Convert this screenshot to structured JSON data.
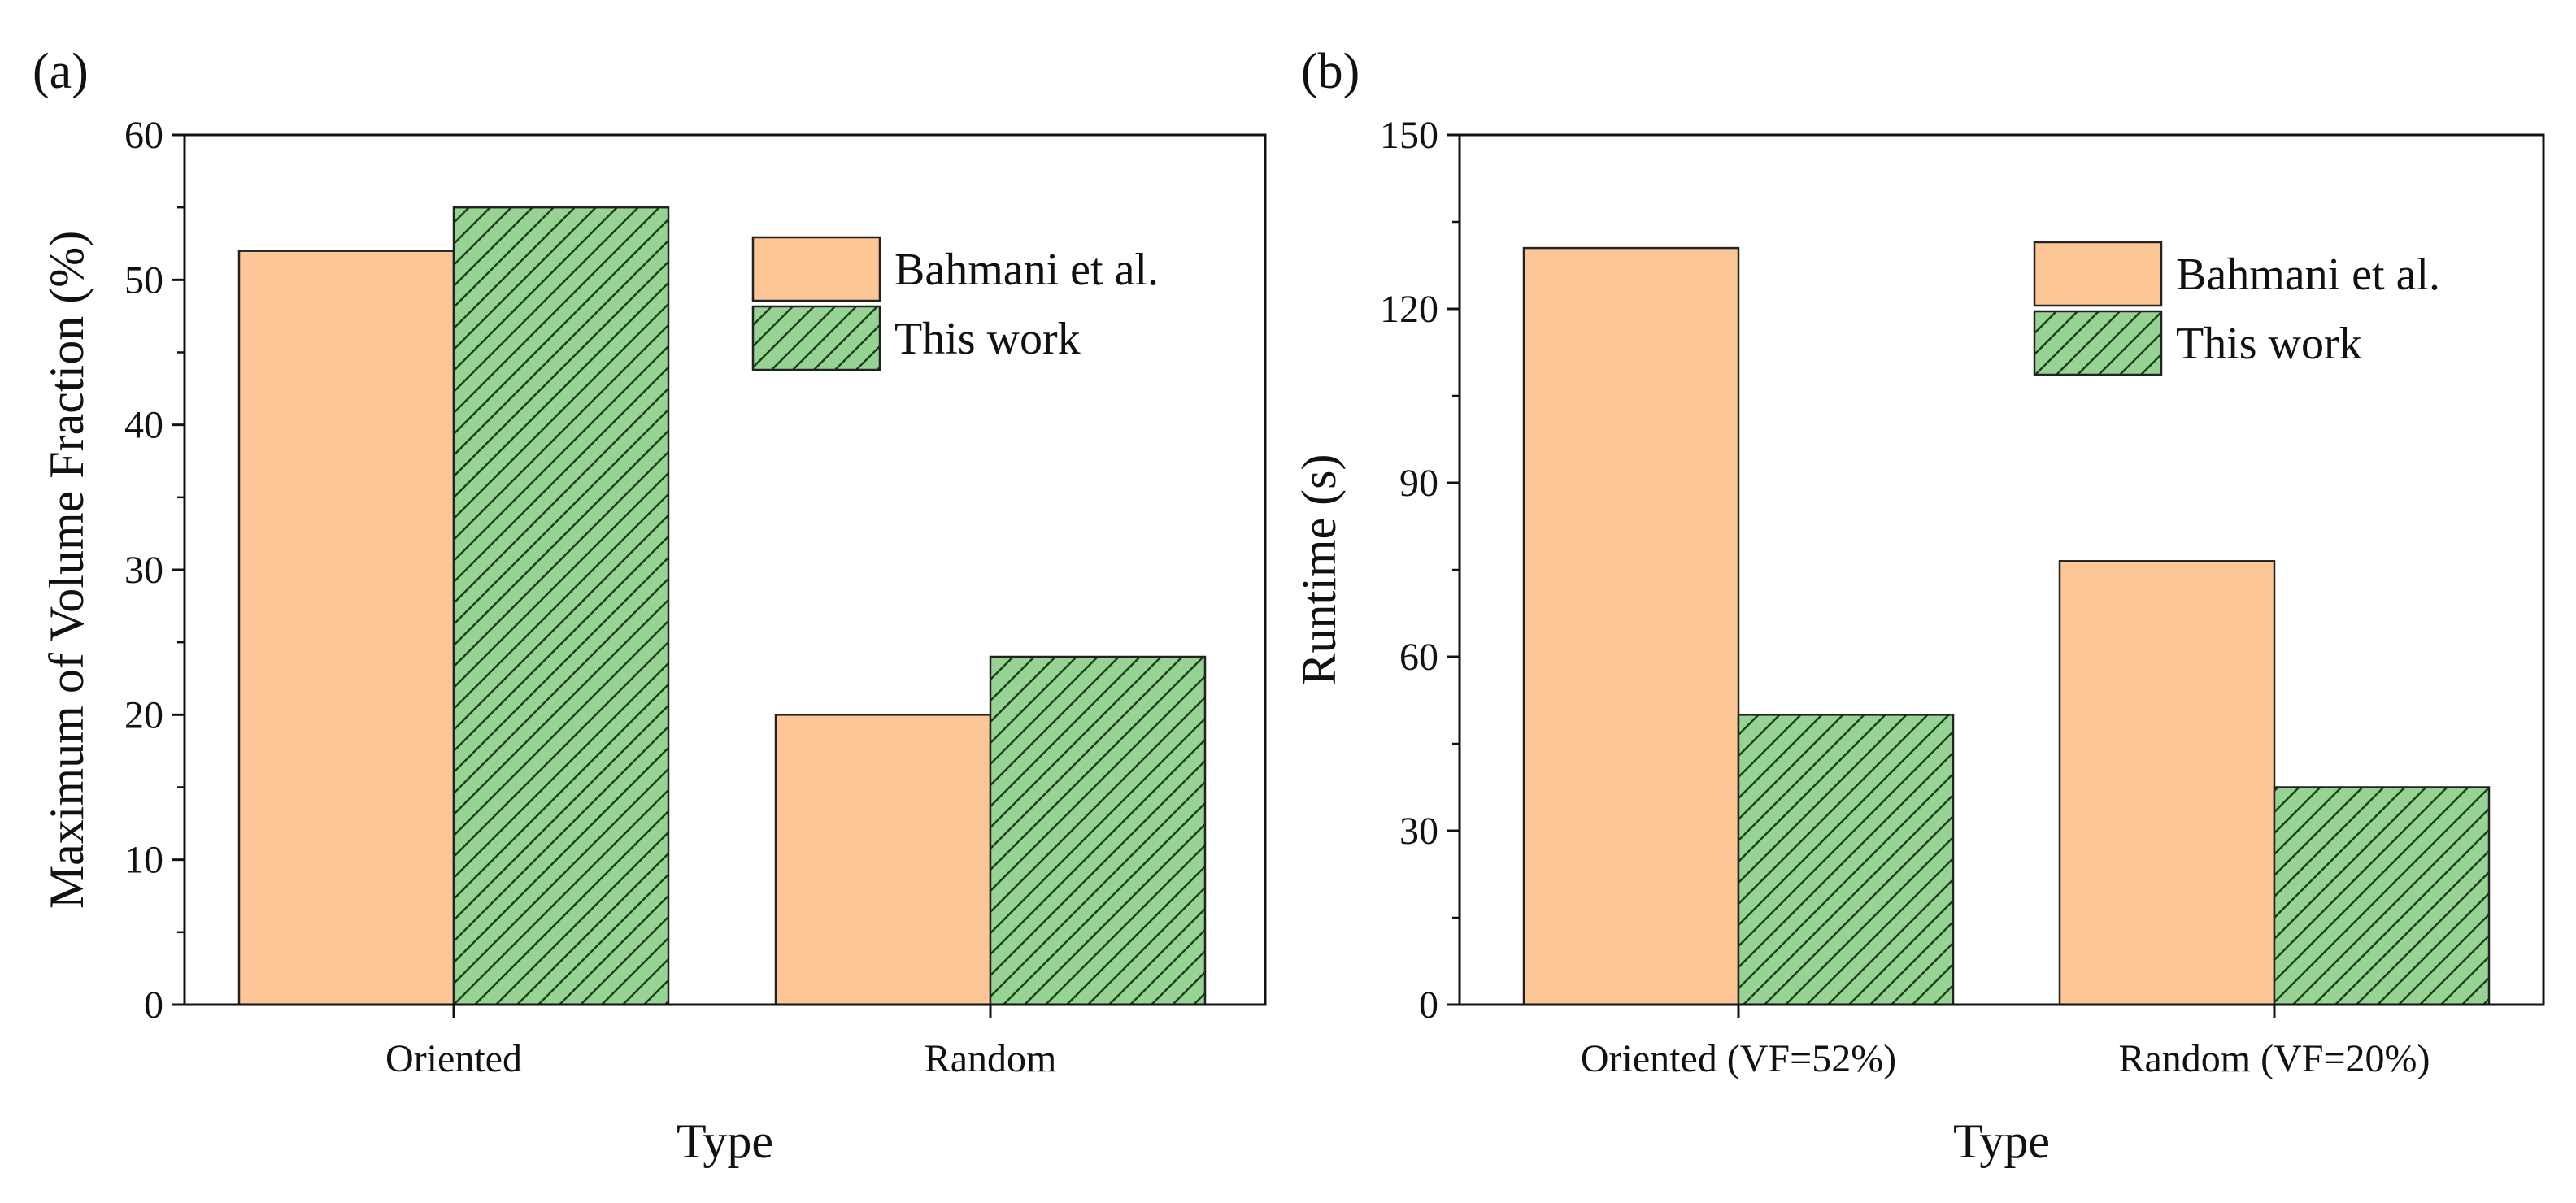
{
  "panel_labels": [
    "(a)",
    "(b)"
  ],
  "colors": {
    "series_1_fill": "#fcc697",
    "series_2_fill": "#97d494",
    "hatch_stroke": "#1a3d1a",
    "bar_edge": "#222222",
    "axis": "#111111"
  },
  "chart_data": [
    {
      "type": "bar",
      "panel": "(a)",
      "title": "",
      "categories": [
        "Oriented",
        "Random"
      ],
      "series": [
        {
          "name": "Bahmani et al.",
          "values": [
            52,
            20
          ],
          "pattern": "solid"
        },
        {
          "name": "This work",
          "values": [
            55,
            24
          ],
          "pattern": "hatch"
        }
      ],
      "xlabel": "Type",
      "ylabel": "Maximum of Volume Fraction (%)",
      "ylim": [
        0,
        60
      ],
      "yticks": [
        0,
        10,
        20,
        30,
        40,
        50,
        60
      ],
      "legend_position": "top-right",
      "grid": false
    },
    {
      "type": "bar",
      "panel": "(b)",
      "title": "",
      "categories": [
        "Oriented (VF=52%)",
        "Random (VF=20%)"
      ],
      "series": [
        {
          "name": "Bahmani et al.",
          "values": [
            130.5,
            76.5
          ],
          "pattern": "solid"
        },
        {
          "name": "This work",
          "values": [
            50,
            37.5
          ],
          "pattern": "hatch"
        }
      ],
      "xlabel": "Type",
      "ylabel": "Runtime (s)",
      "ylim": [
        0,
        150
      ],
      "yticks": [
        0,
        30,
        60,
        90,
        120,
        150
      ],
      "legend_position": "top-right",
      "grid": false
    }
  ]
}
